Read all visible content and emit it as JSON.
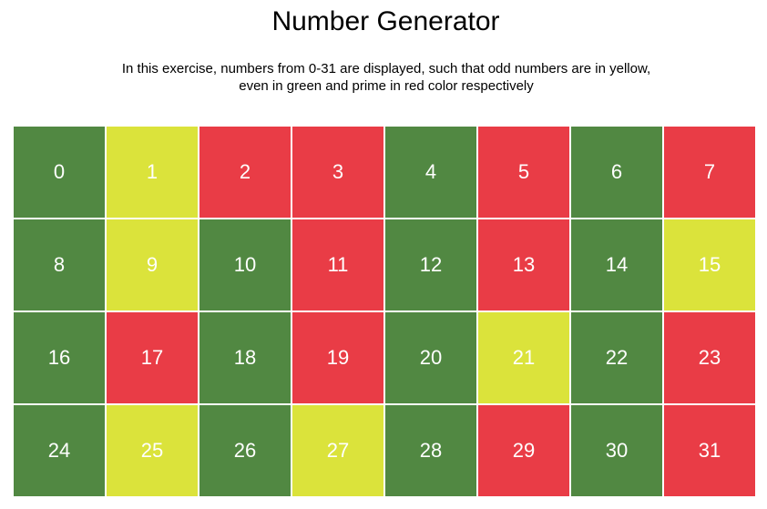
{
  "title": "Number Generator",
  "description": "In this exercise, numbers from 0-31 are displayed, such that odd numbers are in yellow, even in green and prime in red color respectively",
  "colors": {
    "even": "#518842",
    "odd": "#dbe33b",
    "prime": "#e93c46",
    "text": "#ffffff"
  },
  "cells": [
    {
      "label": "0",
      "kind": "even"
    },
    {
      "label": "1",
      "kind": "odd"
    },
    {
      "label": "2",
      "kind": "prime"
    },
    {
      "label": "3",
      "kind": "prime"
    },
    {
      "label": "4",
      "kind": "even"
    },
    {
      "label": "5",
      "kind": "prime"
    },
    {
      "label": "6",
      "kind": "even"
    },
    {
      "label": "7",
      "kind": "prime"
    },
    {
      "label": "8",
      "kind": "even"
    },
    {
      "label": "9",
      "kind": "odd"
    },
    {
      "label": "10",
      "kind": "even"
    },
    {
      "label": "11",
      "kind": "prime"
    },
    {
      "label": "12",
      "kind": "even"
    },
    {
      "label": "13",
      "kind": "prime"
    },
    {
      "label": "14",
      "kind": "even"
    },
    {
      "label": "15",
      "kind": "odd"
    },
    {
      "label": "16",
      "kind": "even"
    },
    {
      "label": "17",
      "kind": "prime"
    },
    {
      "label": "18",
      "kind": "even"
    },
    {
      "label": "19",
      "kind": "prime"
    },
    {
      "label": "20",
      "kind": "even"
    },
    {
      "label": "21",
      "kind": "odd"
    },
    {
      "label": "22",
      "kind": "even"
    },
    {
      "label": "23",
      "kind": "prime"
    },
    {
      "label": "24",
      "kind": "even"
    },
    {
      "label": "25",
      "kind": "odd"
    },
    {
      "label": "26",
      "kind": "even"
    },
    {
      "label": "27",
      "kind": "odd"
    },
    {
      "label": "28",
      "kind": "even"
    },
    {
      "label": "29",
      "kind": "prime"
    },
    {
      "label": "30",
      "kind": "even"
    },
    {
      "label": "31",
      "kind": "prime"
    }
  ]
}
